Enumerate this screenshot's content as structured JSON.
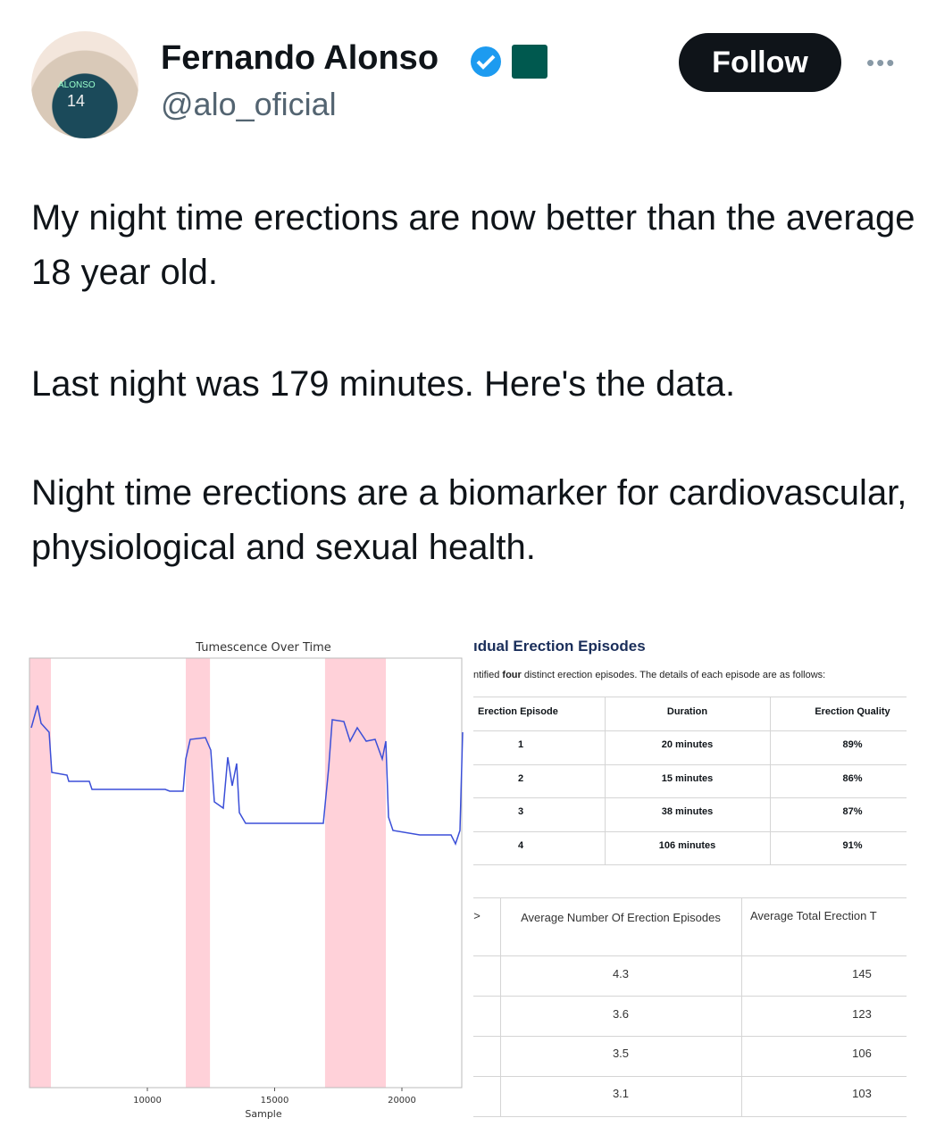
{
  "tweet": {
    "author": {
      "name": "Fernando Alonso",
      "handle": "@alo_oficial",
      "avatar_text": "ALONSO",
      "avatar_number": "14"
    },
    "follow": "Follow",
    "paragraphs": [
      "My night time erections are now better than the average 18 year old.",
      "Last night was 179 minutes.  Here's the data.",
      "Night time erections are a biomarker for cardiovascular, physiological and sexual health."
    ]
  },
  "chart_data": {
    "type": "line",
    "title": "Tumescence Over Time",
    "x_label": "Sample",
    "xlim": [
      5368,
      22351
    ],
    "xticks": [
      10000,
      15000,
      20000
    ],
    "shaded_spans": [
      [
        5370,
        6210
      ],
      [
        11510,
        12460
      ],
      [
        16980,
        19370
      ]
    ],
    "color": "#3b4fd8",
    "span_color": "#ffd1d9"
  },
  "table1": {
    "title": "ıdual Erection Episodes",
    "description": [
      "ntified ",
      "four",
      " distinct erection episodes. The details of each episode are as follows:"
    ],
    "headers": [
      "Erection Episode",
      "Duration",
      "Erection Quality"
    ],
    "rows": [
      [
        1,
        "20 minutes",
        "89%"
      ],
      [
        2,
        "15 minutes",
        "86%"
      ],
      [
        3,
        "38 minutes",
        "87%"
      ],
      [
        4,
        "106 minutes",
        "91%"
      ]
    ]
  },
  "table2": {
    "headers": [
      ">",
      "Average Number Of Erection Episodes",
      "Average  Total Erection T"
    ],
    "rows": [
      [
        4.3,
        145
      ],
      [
        3.6,
        123
      ],
      [
        3.5,
        106
      ],
      [
        3.1,
        103
      ]
    ]
  }
}
